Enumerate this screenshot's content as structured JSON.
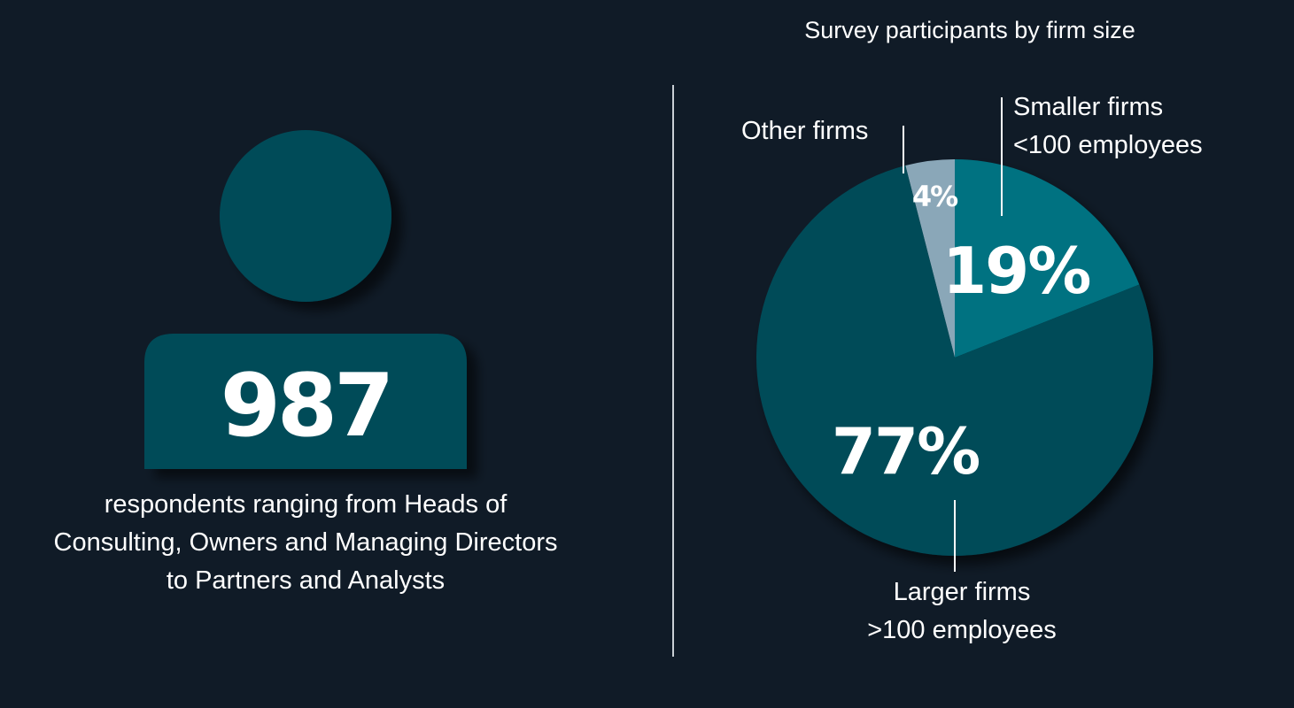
{
  "stat": {
    "value": "987",
    "description_lines": [
      "respondents ranging from Heads of",
      "Consulting, Owners and Managing Directors",
      "to Partners and Analysts"
    ]
  },
  "colors": {
    "background": "#101b27",
    "icon": "#044b58",
    "larger": "#044b58",
    "smaller": "#007281",
    "other": "#8aa7b8",
    "text": "#ffffff",
    "divider": "#c9cfd4"
  },
  "chart_data": {
    "type": "pie",
    "title": "Survey participants by firm size",
    "slices": [
      {
        "key": "other",
        "label_lines": [
          "Other firms"
        ],
        "value": 4,
        "display": "4%",
        "color": "#8aa7b8"
      },
      {
        "key": "smaller",
        "label_lines": [
          "Smaller firms",
          "<100 employees"
        ],
        "value": 19,
        "display": "19%",
        "color": "#007281"
      },
      {
        "key": "larger",
        "label_lines": [
          "Larger firms",
          ">100 employees"
        ],
        "value": 77,
        "display": "77%",
        "color": "#044b58"
      }
    ]
  }
}
